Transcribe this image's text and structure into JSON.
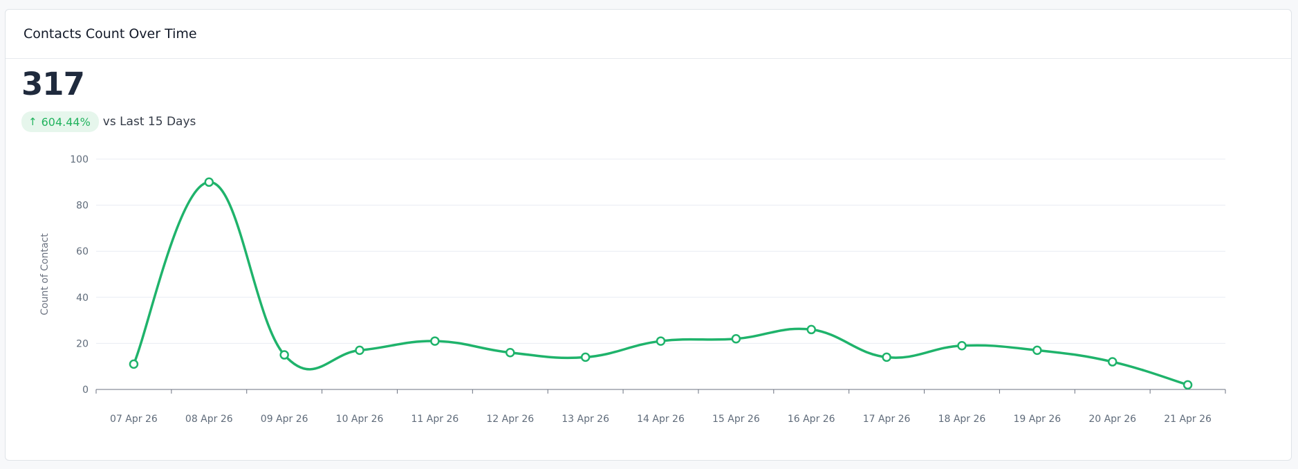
{
  "card": {
    "title": "Contacts Count Over Time",
    "metric_value": "317",
    "delta_value": "604.44%",
    "delta_direction": "up",
    "delta_caption": "vs Last 15 Days"
  },
  "colors": {
    "line": "#1fb36b",
    "badge_bg": "#e6f6ec",
    "badge_text": "#22b35e",
    "grid": "#e8ebf3"
  },
  "chart_data": {
    "type": "line",
    "title": "",
    "xlabel": "",
    "ylabel": "Count of Contact",
    "categories": [
      "07 Apr 26",
      "08 Apr 26",
      "09 Apr 26",
      "10 Apr 26",
      "11 Apr 26",
      "12 Apr 26",
      "13 Apr 26",
      "14 Apr 26",
      "15 Apr 26",
      "16 Apr 26",
      "17 Apr 26",
      "18 Apr 26",
      "19 Apr 26",
      "20 Apr 26",
      "21 Apr 26"
    ],
    "series": [
      {
        "values": [
          11,
          90,
          15,
          17,
          21,
          16,
          14,
          21,
          22,
          26,
          14,
          19,
          17,
          12,
          2
        ]
      }
    ],
    "ylim": [
      0,
      100
    ],
    "yticks": [
      0,
      20,
      40,
      60,
      80,
      100
    ],
    "grid": true,
    "legend": "none",
    "curve": "smooth"
  }
}
